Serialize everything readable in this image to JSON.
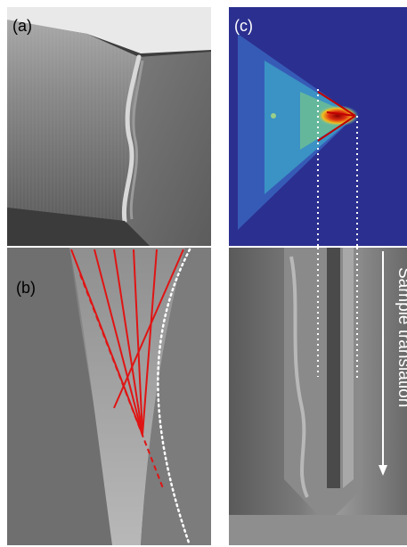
{
  "panels": {
    "a": {
      "label": "(a)"
    },
    "b": {
      "label": "(b)"
    },
    "c": {
      "label": "(c)"
    }
  },
  "annotations": {
    "arrow_text": "Sample translation"
  },
  "colors": {
    "sem_gray": "#6e6e6e",
    "map_background": "#2b2f8f",
    "fit_lines": "#e01414",
    "guide_dots": "#ffffff"
  }
}
